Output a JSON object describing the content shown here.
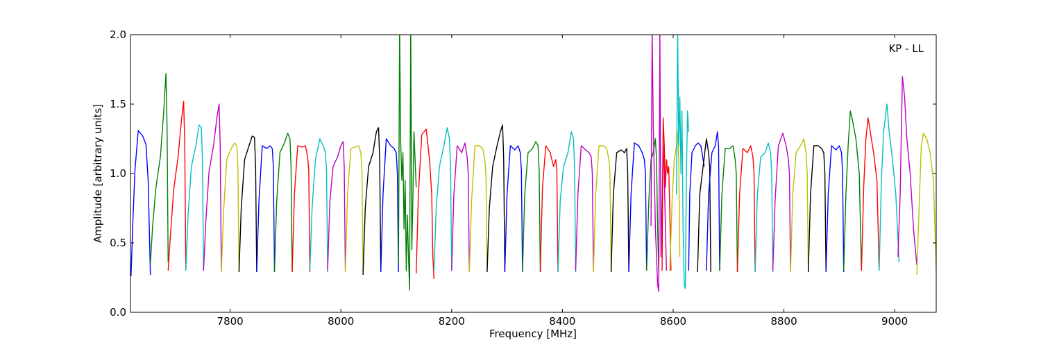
{
  "chart_data": {
    "type": "line",
    "title": "",
    "annotation": "KP - LL",
    "xlabel": "Frequency [MHz]",
    "ylabel": "Amplitude [arbitrary units]",
    "xlim": [
      7620,
      9075
    ],
    "ylim": [
      0.0,
      2.0
    ],
    "xticks": [
      7800,
      8000,
      8200,
      8400,
      8600,
      8800,
      9000
    ],
    "xtick_labels": [
      "7800",
      "8000",
      "8200",
      "8400",
      "8600",
      "8800",
      "9000"
    ],
    "yticks": [
      0.0,
      0.5,
      1.0,
      1.5,
      2.0
    ],
    "ytick_labels": [
      "0.0",
      "0.5",
      "1.0",
      "1.5",
      "2.0"
    ],
    "grid": false,
    "legend": "none",
    "channel_width_mhz": 32,
    "series_colors": [
      "#0000ff",
      "#008000",
      "#ff0000",
      "#00bfbf",
      "#bf00bf",
      "#bfbf00",
      "#000000"
    ],
    "series": [
      {
        "color": "#0000ff",
        "x": [
          7621,
          7624,
          7628,
          7634,
          7642,
          7648,
          7652,
          7656
        ],
        "y": [
          0.26,
          0.62,
          1.02,
          1.31,
          1.27,
          1.21,
          0.95,
          0.27
        ]
      },
      {
        "color": "#008000",
        "x": [
          7656,
          7660,
          7666,
          7674,
          7680,
          7684,
          7686,
          7688
        ],
        "y": [
          0.35,
          0.62,
          0.9,
          1.12,
          1.45,
          1.72,
          1.35,
          0.36
        ]
      },
      {
        "color": "#ff0000",
        "x": [
          7688,
          7692,
          7698,
          7706,
          7712,
          7716,
          7718,
          7720
        ],
        "y": [
          0.3,
          0.55,
          0.88,
          1.12,
          1.38,
          1.52,
          1.22,
          0.3
        ]
      },
      {
        "color": "#00bfbf",
        "x": [
          7720,
          7724,
          7730,
          7738,
          7744,
          7748,
          7750,
          7752
        ],
        "y": [
          0.3,
          0.7,
          1.05,
          1.2,
          1.35,
          1.33,
          1.1,
          0.3
        ]
      },
      {
        "color": "#bf00bf",
        "x": [
          7752,
          7756,
          7762,
          7770,
          7776,
          7780,
          7782,
          7784
        ],
        "y": [
          0.3,
          0.65,
          1.02,
          1.2,
          1.4,
          1.5,
          1.2,
          0.3
        ]
      },
      {
        "color": "#bfbf00",
        "x": [
          7784,
          7788,
          7794,
          7802,
          7808,
          7812,
          7814,
          7816
        ],
        "y": [
          0.29,
          0.72,
          1.1,
          1.18,
          1.22,
          1.2,
          1.05,
          0.29
        ]
      },
      {
        "color": "#000000",
        "x": [
          7816,
          7820,
          7826,
          7834,
          7840,
          7844,
          7846,
          7848
        ],
        "y": [
          0.29,
          0.75,
          1.1,
          1.2,
          1.27,
          1.26,
          1.05,
          0.29
        ]
      },
      {
        "color": "#0000ff",
        "x": [
          7848,
          7852,
          7858,
          7866,
          7872,
          7876,
          7878,
          7880
        ],
        "y": [
          0.29,
          0.8,
          1.2,
          1.18,
          1.2,
          1.18,
          1.05,
          0.29
        ]
      },
      {
        "color": "#008000",
        "x": [
          7880,
          7884,
          7890,
          7898,
          7904,
          7908,
          7910,
          7912
        ],
        "y": [
          0.29,
          0.8,
          1.15,
          1.22,
          1.29,
          1.25,
          1.05,
          0.29
        ]
      },
      {
        "color": "#ff0000",
        "x": [
          7912,
          7916,
          7922,
          7930,
          7936,
          7940,
          7942,
          7944
        ],
        "y": [
          0.29,
          0.85,
          1.2,
          1.19,
          1.2,
          1.12,
          1.02,
          0.29
        ]
      },
      {
        "color": "#00bfbf",
        "x": [
          7944,
          7948,
          7954,
          7962,
          7968,
          7972,
          7974,
          7976
        ],
        "y": [
          0.3,
          0.75,
          1.1,
          1.25,
          1.2,
          1.15,
          1.02,
          0.29
        ]
      },
      {
        "color": "#bf00bf",
        "x": [
          7976,
          7980,
          7986,
          7994,
          8000,
          8004,
          8006,
          8008
        ],
        "y": [
          0.3,
          0.8,
          1.05,
          1.12,
          1.2,
          1.23,
          1.05,
          0.3
        ]
      },
      {
        "color": "#bfbf00",
        "x": [
          8008,
          8012,
          8018,
          8026,
          8032,
          8036,
          8038,
          8040
        ],
        "y": [
          0.29,
          0.85,
          1.18,
          1.19,
          1.2,
          1.15,
          1.02,
          0.29
        ]
      },
      {
        "color": "#000000",
        "x": [
          8040,
          8044,
          8050,
          8058,
          8064,
          8068,
          8070,
          8072
        ],
        "y": [
          0.27,
          0.75,
          1.05,
          1.15,
          1.3,
          1.33,
          1.1,
          0.29
        ]
      },
      {
        "color": "#0000ff",
        "x": [
          8072,
          8076,
          8082,
          8090,
          8096,
          8100,
          8102,
          8104
        ],
        "y": [
          0.29,
          0.85,
          1.25,
          1.2,
          1.18,
          1.15,
          1.0,
          0.29
        ]
      },
      {
        "color": "#008000",
        "x": [
          8104,
          8106,
          8108,
          8110,
          8112,
          8114,
          8116,
          8118,
          8120,
          8122,
          8124,
          8126,
          8128,
          8130,
          8132,
          8134,
          8136
        ],
        "y": [
          0.35,
          2.05,
          1.22,
          0.95,
          1.15,
          0.6,
          0.95,
          0.3,
          0.7,
          0.4,
          0.16,
          2.05,
          0.45,
          0.8,
          1.3,
          1.1,
          0.9
        ]
      },
      {
        "color": "#ff0000",
        "x": [
          8136,
          8140,
          8146,
          8154,
          8160,
          8164,
          8166,
          8168
        ],
        "y": [
          0.28,
          0.85,
          1.28,
          1.32,
          1.1,
          0.85,
          0.4,
          0.24
        ]
      },
      {
        "color": "#00bfbf",
        "x": [
          8168,
          8172,
          8178,
          8186,
          8192,
          8196,
          8198,
          8200
        ],
        "y": [
          0.3,
          0.75,
          1.05,
          1.2,
          1.33,
          1.25,
          1.05,
          0.3
        ]
      },
      {
        "color": "#bf00bf",
        "x": [
          8200,
          8204,
          8210,
          8218,
          8224,
          8228,
          8230,
          8232
        ],
        "y": [
          0.3,
          0.85,
          1.2,
          1.15,
          1.22,
          1.12,
          1.0,
          0.29
        ]
      },
      {
        "color": "#bfbf00",
        "x": [
          8232,
          8236,
          8242,
          8250,
          8256,
          8260,
          8262,
          8264
        ],
        "y": [
          0.29,
          0.8,
          1.2,
          1.2,
          1.18,
          1.1,
          0.98,
          0.29
        ]
      },
      {
        "color": "#000000",
        "x": [
          8264,
          8268,
          8274,
          8282,
          8288,
          8292,
          8294,
          8296
        ],
        "y": [
          0.29,
          0.75,
          1.05,
          1.2,
          1.3,
          1.35,
          1.1,
          0.29
        ]
      },
      {
        "color": "#0000ff",
        "x": [
          8296,
          8300,
          8306,
          8314,
          8320,
          8324,
          8326,
          8328
        ],
        "y": [
          0.29,
          0.85,
          1.2,
          1.17,
          1.2,
          1.15,
          1.02,
          0.29
        ]
      },
      {
        "color": "#008000",
        "x": [
          8328,
          8332,
          8338,
          8346,
          8352,
          8356,
          8358,
          8360
        ],
        "y": [
          0.29,
          0.85,
          1.15,
          1.18,
          1.23,
          1.2,
          1.02,
          0.29
        ]
      },
      {
        "color": "#ff0000",
        "x": [
          8360,
          8364,
          8370,
          8378,
          8384,
          8388,
          8390,
          8392
        ],
        "y": [
          0.29,
          0.9,
          1.2,
          1.15,
          1.05,
          1.1,
          1.02,
          0.29
        ]
      },
      {
        "color": "#00bfbf",
        "x": [
          8392,
          8396,
          8402,
          8410,
          8416,
          8420,
          8422,
          8424
        ],
        "y": [
          0.29,
          0.8,
          1.05,
          1.15,
          1.3,
          1.25,
          1.05,
          0.29
        ]
      },
      {
        "color": "#bf00bf",
        "x": [
          8424,
          8428,
          8434,
          8442,
          8448,
          8452,
          8454,
          8456
        ],
        "y": [
          0.3,
          0.85,
          1.2,
          1.17,
          1.15,
          1.12,
          1.0,
          0.29
        ]
      },
      {
        "color": "#bfbf00",
        "x": [
          8456,
          8460,
          8466,
          8474,
          8480,
          8484,
          8486,
          8488
        ],
        "y": [
          0.29,
          0.85,
          1.2,
          1.2,
          1.18,
          1.1,
          1.0,
          0.29
        ]
      },
      {
        "color": "#000000",
        "x": [
          8488,
          8492,
          8498,
          8506,
          8512,
          8516,
          8518,
          8520
        ],
        "y": [
          0.29,
          0.85,
          1.15,
          1.17,
          1.15,
          1.18,
          1.0,
          0.29
        ]
      },
      {
        "color": "#0000ff",
        "x": [
          8520,
          8524,
          8530,
          8538,
          8544,
          8548,
          8550,
          8552
        ],
        "y": [
          0.29,
          0.85,
          1.22,
          1.2,
          1.15,
          1.1,
          1.0,
          0.3
        ]
      },
      {
        "color": "#008000",
        "x": [
          8552,
          8556,
          8560,
          8564,
          8568,
          8570,
          8572,
          8574
        ],
        "y": [
          0.3,
          0.8,
          1.1,
          1.15,
          1.25,
          1.1,
          0.6,
          0.3
        ]
      },
      {
        "color": "#bf00bf",
        "x": [
          8560,
          8562,
          8564,
          8566,
          8568,
          8570,
          8572,
          8574,
          8576,
          8578,
          8580,
          8582,
          8584,
          8586,
          8588
        ],
        "y": [
          0.62,
          2.05,
          1.35,
          1.0,
          0.6,
          0.4,
          0.2,
          0.15,
          2.05,
          0.4,
          0.8,
          1.2,
          1.0,
          0.6,
          0.3
        ]
      },
      {
        "color": "#ff0000",
        "x": [
          8580,
          8582,
          8584,
          8586,
          8588,
          8590,
          8592,
          8594,
          8596
        ],
        "y": [
          0.3,
          1.4,
          1.2,
          0.9,
          1.1,
          1.0,
          1.05,
          0.7,
          0.3
        ]
      },
      {
        "color": "#bfbf00",
        "x": [
          8594,
          8598,
          8602,
          8606,
          8608,
          8610,
          8612
        ],
        "y": [
          0.3,
          0.8,
          1.1,
          1.2,
          1.3,
          1.1,
          0.4
        ]
      },
      {
        "color": "#00bfbf",
        "x": [
          8606,
          8608,
          8610,
          8612,
          8614,
          8616,
          8618,
          8620,
          8622,
          8624,
          8626,
          8628
        ],
        "y": [
          0.85,
          2.05,
          1.2,
          1.55,
          1.0,
          1.45,
          0.6,
          0.2,
          0.17,
          1.0,
          1.45,
          1.3
        ]
      },
      {
        "color": "#0000ff",
        "x": [
          8628,
          8630,
          8634,
          8640,
          8645,
          8650,
          8656
        ],
        "y": [
          0.3,
          0.85,
          1.15,
          1.2,
          1.22,
          1.2,
          1.05
        ]
      },
      {
        "color": "#000000",
        "x": [
          8644,
          8648,
          8654,
          8660,
          8664,
          8666,
          8668
        ],
        "y": [
          0.29,
          0.85,
          1.05,
          1.25,
          1.15,
          1.05,
          0.29
        ]
      },
      {
        "color": "#0000ff",
        "x": [
          8660,
          8664,
          8670,
          8676,
          8680,
          8682,
          8684
        ],
        "y": [
          0.3,
          0.85,
          1.15,
          1.2,
          1.3,
          1.2,
          0.3
        ]
      },
      {
        "color": "#008000",
        "x": [
          8684,
          8688,
          8694,
          8702,
          8708,
          8712,
          8714,
          8716
        ],
        "y": [
          0.3,
          0.85,
          1.18,
          1.18,
          1.2,
          1.1,
          1.0,
          0.29
        ]
      },
      {
        "color": "#ff0000",
        "x": [
          8716,
          8720,
          8726,
          8734,
          8740,
          8744,
          8746,
          8748
        ],
        "y": [
          0.29,
          0.85,
          1.18,
          1.15,
          1.2,
          1.12,
          1.0,
          0.29
        ]
      },
      {
        "color": "#00bfbf",
        "x": [
          8748,
          8752,
          8758,
          8766,
          8772,
          8776,
          8778,
          8780
        ],
        "y": [
          0.29,
          0.85,
          1.12,
          1.15,
          1.22,
          1.15,
          1.0,
          0.29
        ]
      },
      {
        "color": "#bf00bf",
        "x": [
          8780,
          8784,
          8790,
          8798,
          8804,
          8808,
          8810,
          8812
        ],
        "y": [
          0.3,
          0.8,
          1.2,
          1.29,
          1.2,
          1.1,
          1.0,
          0.29
        ]
      },
      {
        "color": "#bfbf00",
        "x": [
          8812,
          8816,
          8822,
          8830,
          8836,
          8840,
          8842,
          8844
        ],
        "y": [
          0.29,
          0.85,
          1.15,
          1.2,
          1.25,
          1.15,
          1.0,
          0.29
        ]
      },
      {
        "color": "#000000",
        "x": [
          8844,
          8848,
          8854,
          8862,
          8868,
          8872,
          8874,
          8876
        ],
        "y": [
          0.29,
          0.85,
          1.2,
          1.2,
          1.18,
          1.15,
          1.0,
          0.29
        ]
      },
      {
        "color": "#0000ff",
        "x": [
          8876,
          8880,
          8886,
          8894,
          8900,
          8904,
          8906,
          8908
        ],
        "y": [
          0.29,
          0.85,
          1.2,
          1.17,
          1.2,
          1.15,
          1.0,
          0.29
        ]
      },
      {
        "color": "#008000",
        "x": [
          8908,
          8912,
          8916,
          8920,
          8924,
          8930,
          8936,
          8940
        ],
        "y": [
          0.3,
          0.85,
          1.2,
          1.45,
          1.38,
          1.25,
          1.0,
          0.3
        ]
      },
      {
        "color": "#ff0000",
        "x": [
          8940,
          8944,
          8948,
          8952,
          8956,
          8962,
          8968,
          8972
        ],
        "y": [
          0.3,
          0.9,
          1.25,
          1.4,
          1.3,
          1.15,
          0.95,
          0.3
        ]
      },
      {
        "color": "#00bfbf",
        "x": [
          8972,
          8976,
          8980,
          8986,
          8990,
          8996,
          9002,
          9008
        ],
        "y": [
          0.3,
          0.95,
          1.3,
          1.5,
          1.3,
          1.1,
          0.85,
          0.36
        ]
      },
      {
        "color": "#bf00bf",
        "x": [
          9006,
          9010,
          9014,
          9018,
          9022,
          9028,
          9034,
          9040
        ],
        "y": [
          0.4,
          0.85,
          1.7,
          1.55,
          1.25,
          1.0,
          0.6,
          0.34
        ]
      },
      {
        "color": "#bfbf00",
        "x": [
          9040,
          9044,
          9048,
          9052,
          9058,
          9064,
          9070,
          9075
        ],
        "y": [
          0.27,
          0.75,
          1.2,
          1.29,
          1.25,
          1.15,
          0.95,
          0.3
        ]
      }
    ]
  }
}
